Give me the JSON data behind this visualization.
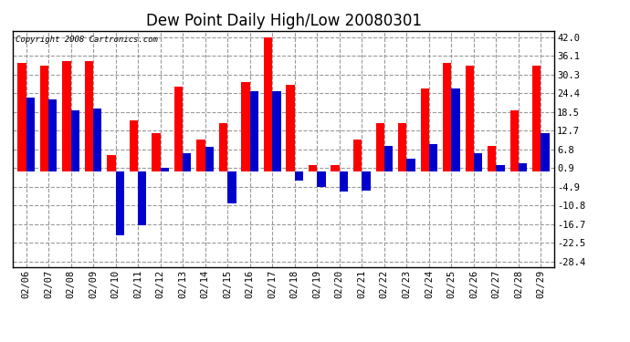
{
  "title": "Dew Point Daily High/Low 20080301",
  "copyright": "Copyright 2008 Cartronics.com",
  "dates": [
    "02/06",
    "02/07",
    "02/08",
    "02/09",
    "02/10",
    "02/11",
    "02/12",
    "02/13",
    "02/14",
    "02/15",
    "02/16",
    "02/17",
    "02/18",
    "02/19",
    "02/20",
    "02/21",
    "02/22",
    "02/23",
    "02/24",
    "02/25",
    "02/26",
    "02/27",
    "02/28",
    "02/29"
  ],
  "highs": [
    34.0,
    33.0,
    34.5,
    34.5,
    5.0,
    16.0,
    12.0,
    26.5,
    10.0,
    15.0,
    28.0,
    42.0,
    27.0,
    2.0,
    2.0,
    10.0,
    15.0,
    15.0,
    26.0,
    34.0,
    33.0,
    8.0,
    19.0,
    33.0
  ],
  "lows": [
    23.0,
    22.5,
    19.0,
    19.5,
    -20.0,
    -17.0,
    1.0,
    5.5,
    7.5,
    -10.0,
    25.0,
    25.0,
    -3.0,
    -5.0,
    -6.5,
    -6.0,
    8.0,
    4.0,
    8.5,
    26.0,
    5.5,
    2.0,
    2.5,
    12.0
  ],
  "high_color": "#ff0000",
  "low_color": "#0000cc",
  "yticks": [
    42.0,
    36.1,
    30.3,
    24.4,
    18.5,
    12.7,
    6.8,
    0.9,
    -4.9,
    -10.8,
    -16.7,
    -22.5,
    -28.4
  ],
  "ylim": [
    -30.0,
    44.0
  ],
  "bar_width": 0.38,
  "bg_color": "#ffffff",
  "plot_bg_color": "#ffffff",
  "grid_color": "#999999",
  "title_fontsize": 12,
  "tick_fontsize": 7.5,
  "copyright_fontsize": 6.5
}
